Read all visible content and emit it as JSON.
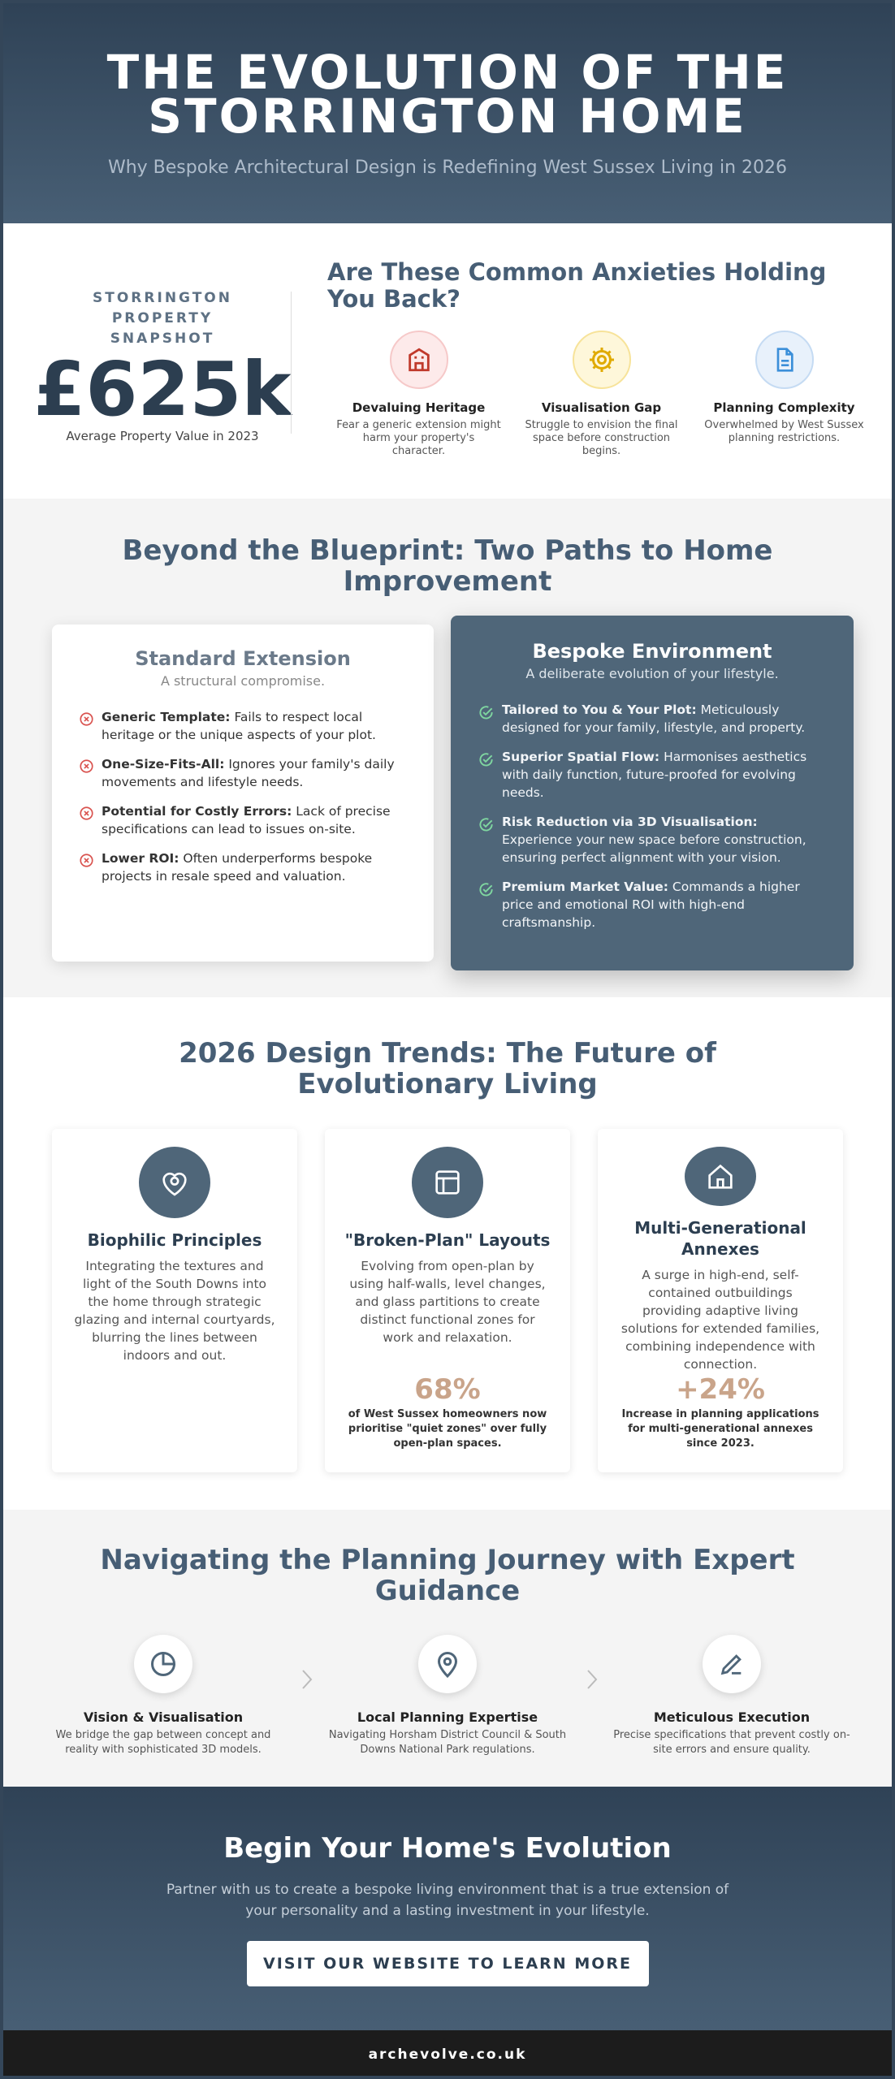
{
  "header": {
    "title": "THE EVOLUTION OF THE STORRINGTON HOME",
    "subtitle": "Why Bespoke Architectural Design is Redefining West Sussex Living in 2026"
  },
  "snapshot": {
    "label": "STORRINGTON PROPERTY SNAPSHOT",
    "value": "£625k",
    "caption": "Average Property Value in 2023"
  },
  "anxieties": {
    "heading": "Are These Common Anxieties Holding You Back?",
    "items": [
      {
        "title": "Devaluing Heritage",
        "text": "Fear a generic extension might harm your property's character."
      },
      {
        "title": "Visualisation Gap",
        "text": "Struggle to envision the final space before construction begins."
      },
      {
        "title": "Planning Complexity",
        "text": "Overwhelmed by West Sussex planning restrictions."
      }
    ]
  },
  "paths": {
    "heading": "Beyond the Blueprint: Two Paths to Home Improvement",
    "standard": {
      "title": "Standard Extension",
      "subtitle": "A structural compromise.",
      "items": [
        {
          "label": "Generic Template:",
          "text": "Fails to respect local heritage or the unique aspects of your plot."
        },
        {
          "label": "One-Size-Fits-All:",
          "text": "Ignores your family's daily movements and lifestyle needs."
        },
        {
          "label": "Potential for Costly Errors:",
          "text": "Lack of precise specifications can lead to issues on-site."
        },
        {
          "label": "Lower ROI:",
          "text": "Often underperforms bespoke projects in resale speed and valuation."
        }
      ]
    },
    "bespoke": {
      "title": "Bespoke Environment",
      "subtitle": "A deliberate evolution of your lifestyle.",
      "items": [
        {
          "label": "Tailored to You & Your Plot:",
          "text": "Meticulously designed for your family, lifestyle, and property."
        },
        {
          "label": "Superior Spatial Flow:",
          "text": "Harmonises aesthetics with daily function, future-proofed for evolving needs."
        },
        {
          "label": "Risk Reduction via 3D Visualisation:",
          "text": "Experience your new space before construction, ensuring perfect alignment with your vision."
        },
        {
          "label": "Premium Market Value:",
          "text": "Commands a higher price and emotional ROI with high-end craftsmanship."
        }
      ]
    }
  },
  "trends": {
    "heading": "2026 Design Trends: The Future of Evolutionary Living",
    "cards": [
      {
        "title": "Biophilic Principles",
        "text": "Integrating the textures and light of the South Downs into the home through strategic glazing and internal courtyards, blurring the lines between indoors and out."
      },
      {
        "title": "\"Broken-Plan\" Layouts",
        "text": "Evolving from open-plan by using half-walls, level changes, and glass partitions to create distinct functional zones for work and relaxation.",
        "stat": "68%",
        "stat_text": "of West Sussex homeowners now prioritise \"quiet zones\" over fully open-plan spaces."
      },
      {
        "title": "Multi-Generational Annexes",
        "text": "A surge in high-end, self-contained outbuildings providing adaptive living solutions for extended families, combining independence with connection.",
        "stat": "+24%",
        "stat_text": "Increase in planning applications for multi-generational annexes since 2023."
      }
    ]
  },
  "planning": {
    "heading": "Navigating the Planning Journey with Expert Guidance",
    "steps": [
      {
        "title": "Vision & Visualisation",
        "text": "We bridge the gap between concept and reality with sophisticated 3D models."
      },
      {
        "title": "Local Planning Expertise",
        "text": "Navigating Horsham District Council & South Downs National Park regulations."
      },
      {
        "title": "Meticulous Execution",
        "text": "Precise specifications that prevent costly on-site errors and ensure quality."
      }
    ]
  },
  "cta": {
    "heading": "Begin Your Home's Evolution",
    "text": "Partner with us to create a bespoke living environment that is a true extension of your personality and a lasting investment in your lifestyle.",
    "button": "VISIT OUR WEBSITE TO LEARN MORE"
  },
  "footer": {
    "url": "archevolve.co.uk"
  }
}
